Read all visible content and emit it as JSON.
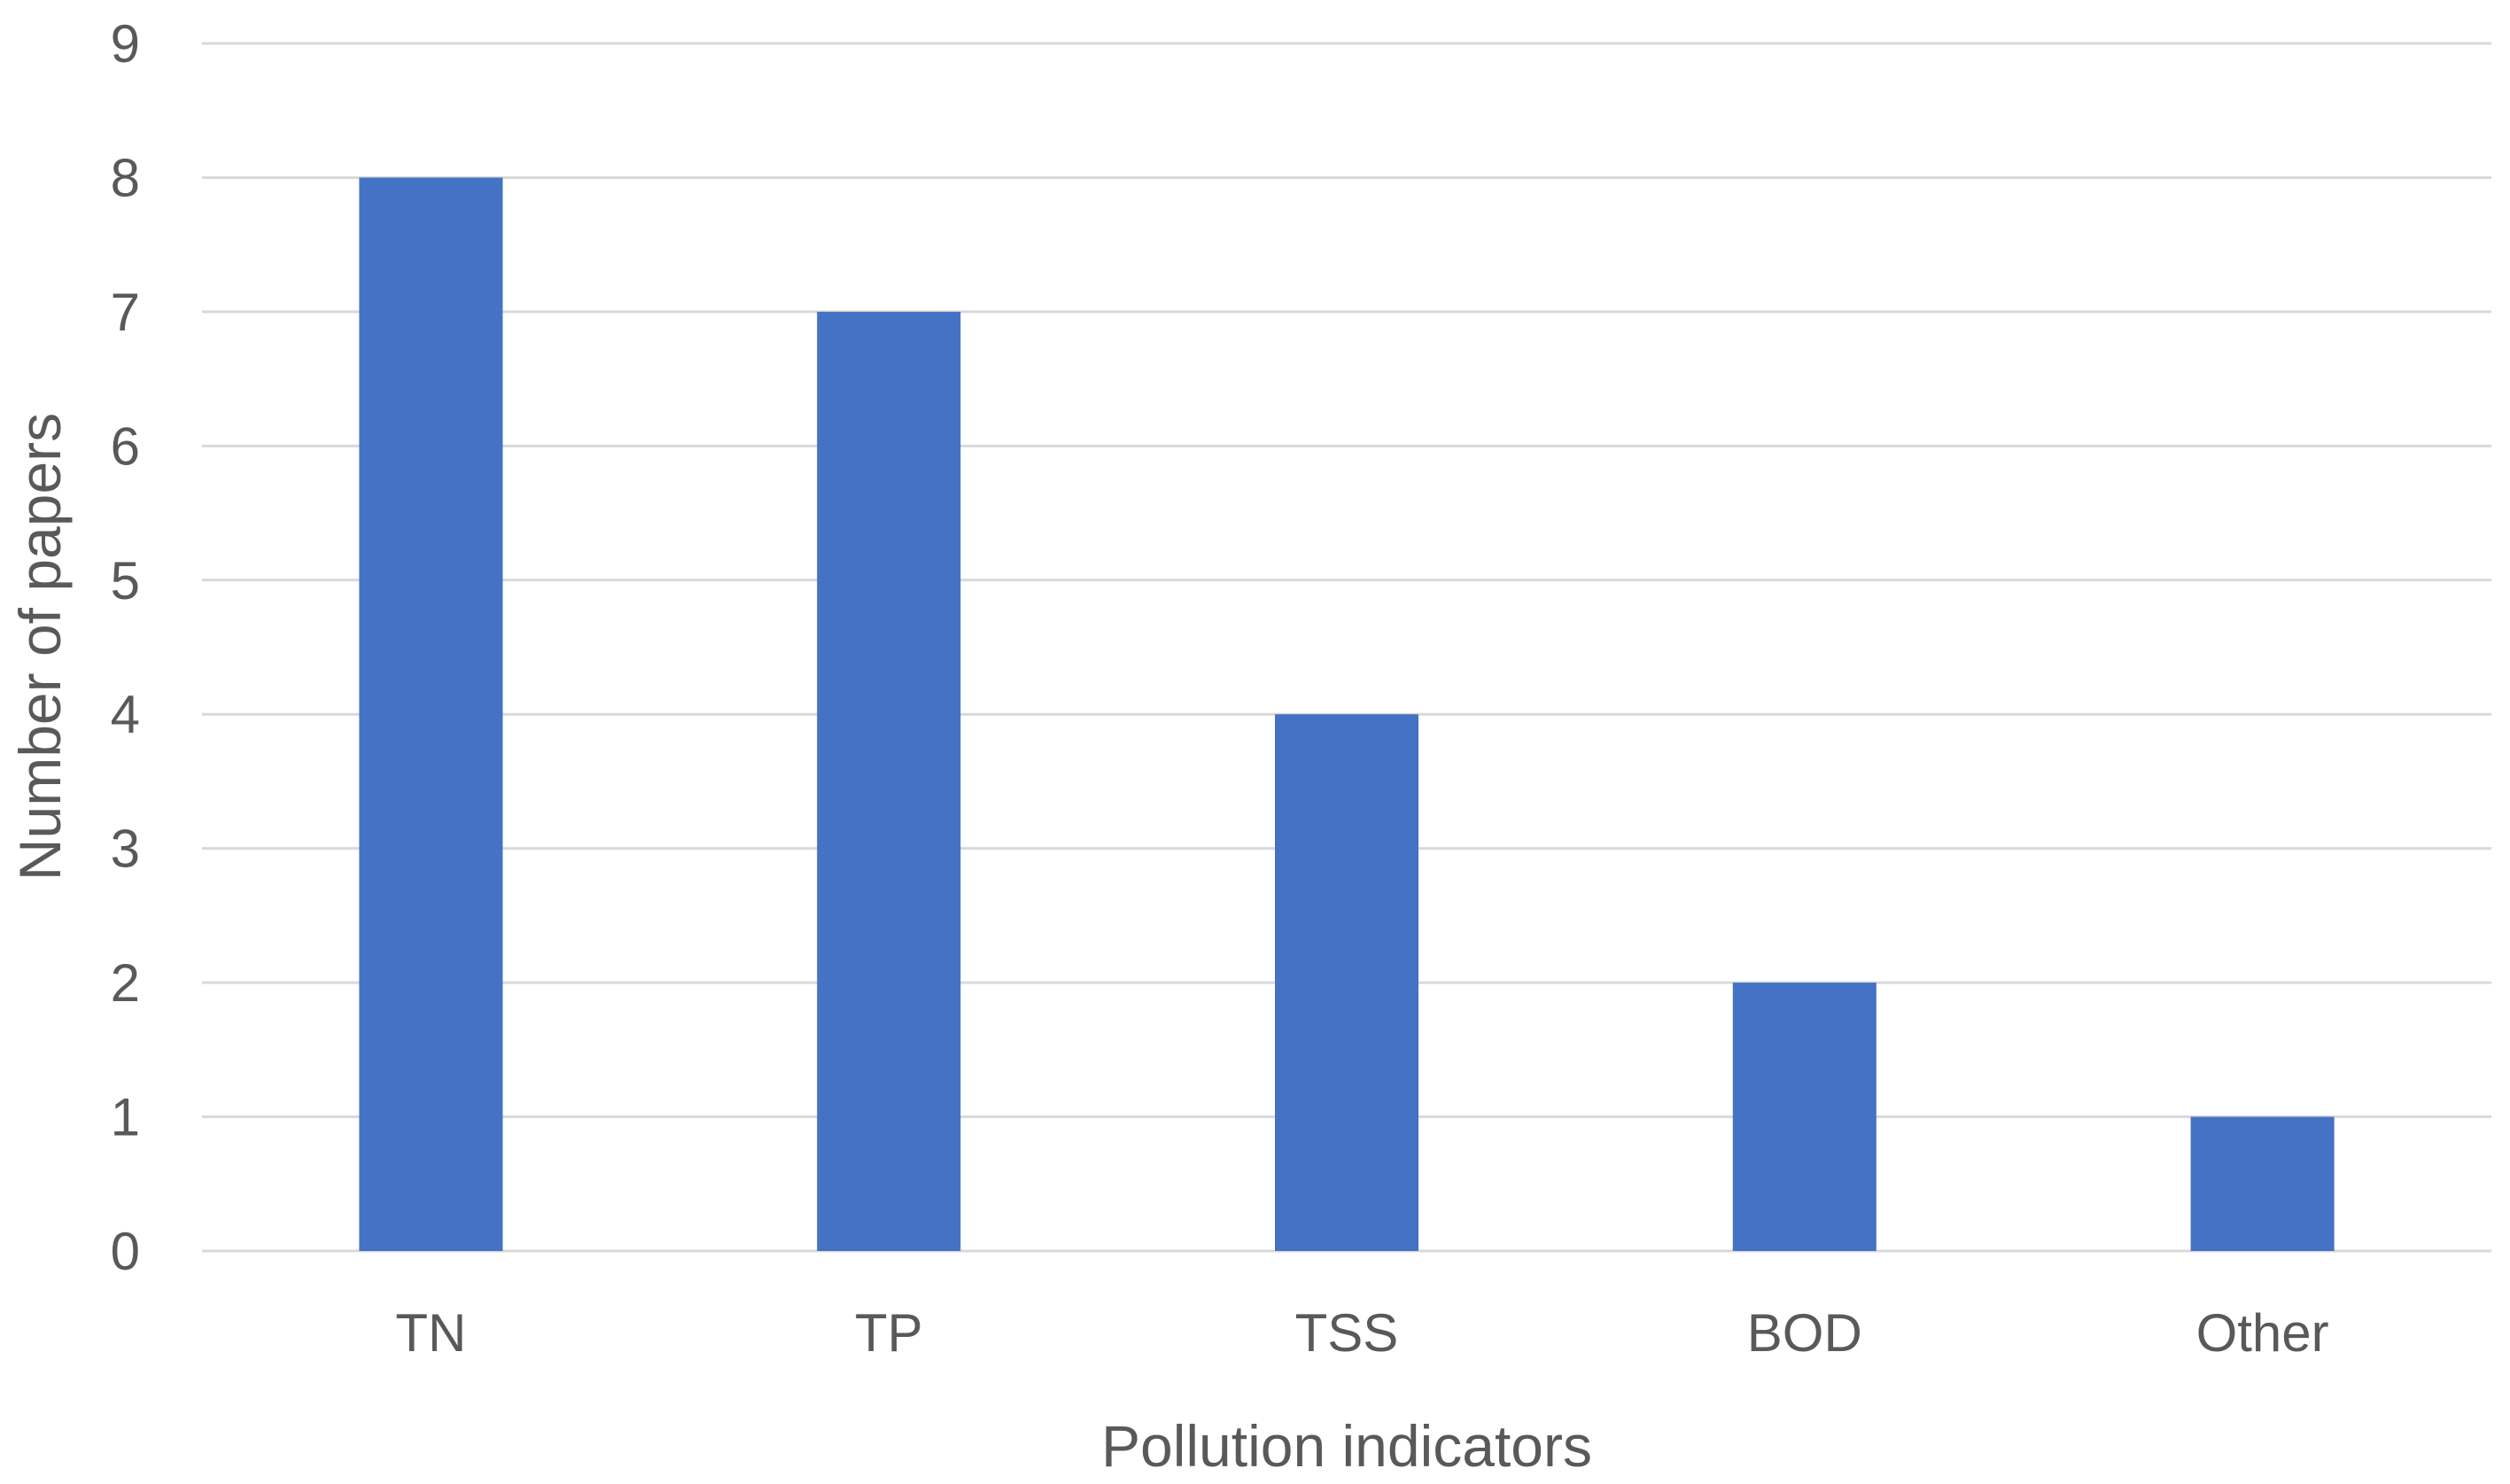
{
  "chart_data": {
    "type": "bar",
    "title": "",
    "categories": [
      "TN",
      "TP",
      "TSS",
      "BOD",
      "Other"
    ],
    "values": [
      8,
      7,
      4,
      2,
      1
    ],
    "xlabel": "Pollution indicators",
    "ylabel": "Number of papers",
    "ylim": [
      0,
      9
    ],
    "yticks": [
      "0",
      "1",
      "2",
      "3",
      "4",
      "5",
      "6",
      "7",
      "8",
      "9"
    ],
    "grid": true,
    "legend": "none",
    "bar_color": "#4472c4",
    "grid_color": "#d9d9d9",
    "text_color": "#595959"
  }
}
